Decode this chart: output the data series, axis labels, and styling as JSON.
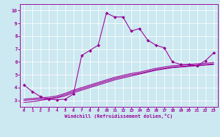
{
  "title": "",
  "xlabel": "Windchill (Refroidissement éolien,°C)",
  "background_color": "#cce8f0",
  "line_color": "#990099",
  "grid_color": "#ffffff",
  "xlim": [
    -0.5,
    23.5
  ],
  "ylim": [
    2.5,
    10.5
  ],
  "xticks": [
    0,
    1,
    2,
    3,
    4,
    5,
    6,
    7,
    8,
    9,
    10,
    11,
    12,
    13,
    14,
    15,
    16,
    17,
    18,
    19,
    20,
    21,
    22,
    23
  ],
  "yticks": [
    3,
    4,
    5,
    6,
    7,
    8,
    9,
    10
  ],
  "curve1_x": [
    0,
    1,
    2,
    3,
    4,
    5,
    6,
    7,
    8,
    9,
    10,
    11,
    12,
    13,
    14,
    15,
    16,
    17,
    18,
    19,
    20,
    21,
    22,
    23
  ],
  "curve1_y": [
    4.2,
    3.7,
    3.3,
    3.1,
    3.05,
    3.1,
    3.5,
    6.5,
    6.9,
    7.3,
    9.8,
    9.5,
    9.5,
    8.4,
    8.6,
    7.7,
    7.3,
    7.1,
    6.0,
    5.8,
    5.8,
    5.7,
    6.1,
    6.7
  ],
  "curve2_x": [
    0,
    1,
    2,
    3,
    4,
    5,
    6,
    7,
    8,
    9,
    10,
    11,
    12,
    13,
    14,
    15,
    16,
    17,
    18,
    19,
    20,
    21,
    22,
    23
  ],
  "curve2_y": [
    2.85,
    2.9,
    3.0,
    3.1,
    3.2,
    3.35,
    3.6,
    3.8,
    4.0,
    4.2,
    4.4,
    4.6,
    4.75,
    4.9,
    5.05,
    5.2,
    5.35,
    5.45,
    5.55,
    5.6,
    5.65,
    5.7,
    5.75,
    5.8
  ],
  "curve3_x": [
    0,
    1,
    2,
    3,
    4,
    5,
    6,
    7,
    8,
    9,
    10,
    11,
    12,
    13,
    14,
    15,
    16,
    17,
    18,
    19,
    20,
    21,
    22,
    23
  ],
  "curve3_y": [
    3.0,
    3.05,
    3.1,
    3.15,
    3.25,
    3.45,
    3.7,
    3.9,
    4.1,
    4.3,
    4.5,
    4.7,
    4.85,
    5.0,
    5.1,
    5.25,
    5.4,
    5.5,
    5.6,
    5.65,
    5.7,
    5.75,
    5.8,
    5.85
  ],
  "curve4_x": [
    0,
    1,
    2,
    3,
    4,
    5,
    6,
    7,
    8,
    9,
    10,
    11,
    12,
    13,
    14,
    15,
    16,
    17,
    18,
    19,
    20,
    21,
    22,
    23
  ],
  "curve4_y": [
    3.1,
    3.15,
    3.2,
    3.25,
    3.35,
    3.55,
    3.8,
    4.0,
    4.2,
    4.4,
    4.6,
    4.8,
    4.95,
    5.1,
    5.2,
    5.35,
    5.5,
    5.6,
    5.7,
    5.75,
    5.8,
    5.85,
    5.9,
    5.95
  ]
}
